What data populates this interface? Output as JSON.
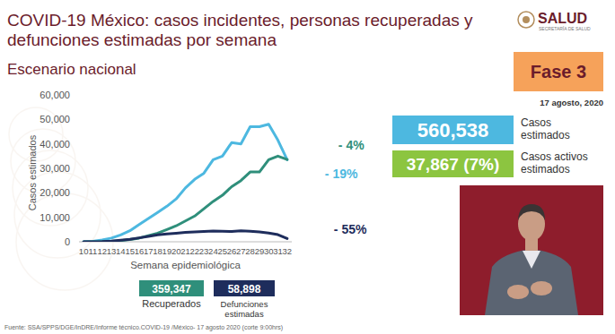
{
  "header": {
    "title": "COVID-19 México: casos incidentes, personas recuperadas y defunciones estimadas por semana",
    "subtitle": "Escenario nacional",
    "logo": "SALUD",
    "logo_subtitle": "SECRETARÍA DE SALUD",
    "phase": "Fase 3",
    "date": "17 agosto, 2020"
  },
  "summary": {
    "active_cases": {
      "value": "37,867 (7%)",
      "name": "Casos activos estimados",
      "color": "#8cc540"
    }
  },
  "source": "Fuente: SSA/SPPS/DGE/InDRE/Informe técnico.COVID-19 /México- 17 agosto 2020 (corte 9:00hrs)",
  "chart_data": {
    "type": "line",
    "x_label": "Semana epidemiológica",
    "y_label": "Casos estimados",
    "x": [
      10,
      11,
      12,
      13,
      14,
      15,
      16,
      17,
      18,
      19,
      20,
      21,
      22,
      23,
      24,
      25,
      26,
      27,
      28,
      29,
      30,
      31,
      32
    ],
    "xlim": [
      9.5,
      32.5
    ],
    "xticks": [
      10,
      11,
      12,
      13,
      14,
      15,
      16,
      17,
      18,
      19,
      20,
      21,
      22,
      23,
      24,
      25,
      26,
      27,
      28,
      29,
      30,
      31,
      32
    ],
    "ylim": [
      0,
      60000
    ],
    "yticks": [
      0,
      {
        "value": 10000,
        "label": "10,000"
      },
      {
        "value": 20000,
        "label": "20,000"
      },
      {
        "value": 30000,
        "label": "30,000"
      },
      {
        "value": 40000,
        "label": "40,000"
      },
      {
        "value": 50000,
        "label": "50,000"
      },
      {
        "value": 60000,
        "label": "60,000"
      }
    ],
    "grid": false,
    "series": [
      {
        "name": "Casos estimados",
        "color": "#4db8e0",
        "total": "560,538",
        "annotation": "- 19%",
        "values": [
          0,
          200,
          700,
          1500,
          2800,
          4500,
          7000,
          9500,
          12000,
          14500,
          17500,
          22000,
          25500,
          28000,
          33500,
          35000,
          40500,
          40000,
          47000,
          47000,
          48000,
          41500,
          33500
        ]
      },
      {
        "name": "Recuperados",
        "color": "#2f8f7b",
        "total": "359,347",
        "annotation": "- 4%",
        "values": [
          0,
          0,
          50,
          200,
          500,
          900,
          1500,
          2500,
          3500,
          5000,
          6500,
          8500,
          10500,
          13500,
          16500,
          19000,
          22500,
          25000,
          28500,
          28500,
          33500,
          35000,
          33600
        ]
      },
      {
        "name": "Defunciones estimadas",
        "color": "#1e2d5c",
        "total": "58,898",
        "annotation": "- 55%",
        "values": [
          0,
          20,
          80,
          250,
          600,
          1000,
          1600,
          2200,
          2800,
          3200,
          3500,
          3800,
          4000,
          4200,
          4400,
          4300,
          4200,
          4500,
          4300,
          4000,
          3600,
          2900,
          1300
        ]
      }
    ]
  }
}
